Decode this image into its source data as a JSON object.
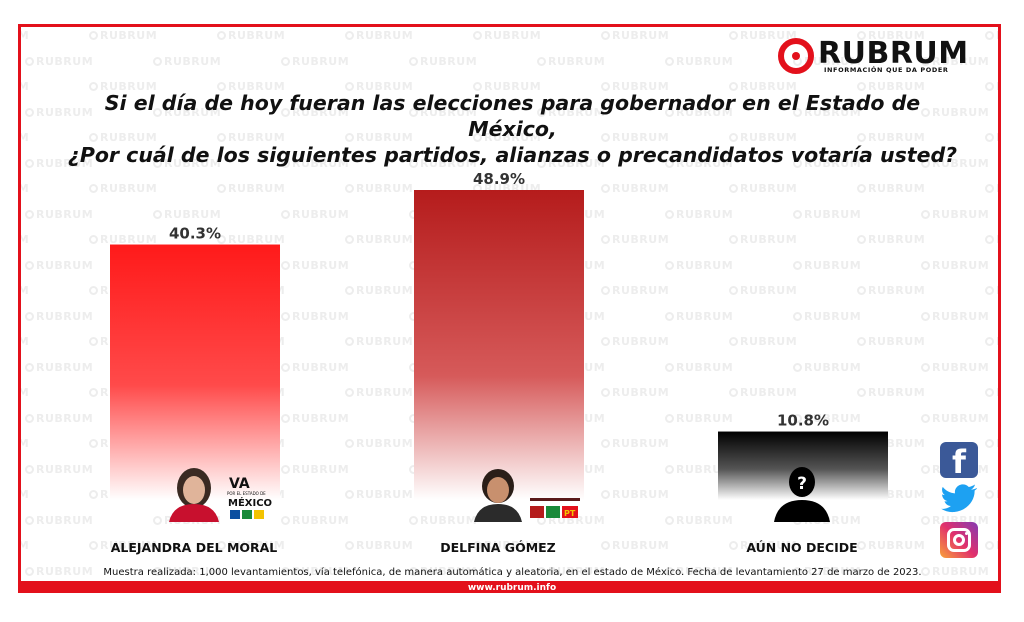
{
  "brand": {
    "name": "RUBRUM",
    "tagline": "INFORMACIÓN QUE DA PODER",
    "website": "www.rubrum.info",
    "watermark_text": "RUBRUM",
    "accent_color": "#e3101b"
  },
  "question": {
    "line1": "Si el día de hoy fueran las elecciones para gobernador en el Estado de México,",
    "line2": "¿Por cuál de los siguientes partidos, alianzas o precandidatos votaría usted?"
  },
  "chart_data": {
    "type": "bar",
    "title": "Si el día de hoy fueran las elecciones para gobernador en el Estado de México, ¿Por cuál de los siguientes partidos, alianzas o precandidatos votaría usted?",
    "categories": [
      "ALEJANDRA DEL MORAL",
      "DELFINA GÓMEZ",
      "AÚN NO DECIDE"
    ],
    "values": [
      40.3,
      48.9,
      10.8
    ],
    "value_labels": [
      "40.3%",
      "48.9%",
      "10.8%"
    ],
    "ylim": [
      0,
      50
    ],
    "grid": false,
    "bar_colors": [
      "#ff1a1a",
      "#b51c1c",
      "#000000"
    ],
    "xlabel": "",
    "ylabel": ""
  },
  "footnote": "Muestra realizada: 1,000 levantamientos, vía telefónica, de manera automática y aleatoria, en el estado de México. Fecha de levantamiento 27 de marzo de 2023.",
  "social": [
    "facebook-icon",
    "twitter-icon",
    "instagram-icon"
  ]
}
